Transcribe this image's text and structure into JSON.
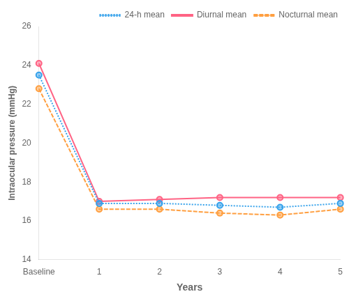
{
  "chart_data": {
    "type": "line",
    "xlabel": "Years",
    "ylabel": "Intraocular pressure (mmHg)",
    "categories": [
      "Baseline",
      "1",
      "2",
      "3",
      "4",
      "5"
    ],
    "series": [
      {
        "name": "24-h mean",
        "values": [
          23.5,
          16.9,
          16.9,
          16.8,
          16.7,
          16.9
        ],
        "marker": "circle",
        "line_style": "dotted"
      },
      {
        "name": "Diurnal mean",
        "values": [
          24.1,
          17.0,
          17.1,
          17.2,
          17.2,
          17.2
        ],
        "marker": "circle",
        "line_style": "solid"
      },
      {
        "name": "Nocturnal mean",
        "values": [
          22.8,
          16.6,
          16.6,
          16.4,
          16.3,
          16.6
        ],
        "marker": "circle",
        "line_style": "dashed"
      }
    ],
    "ylim": [
      14,
      26
    ],
    "yticks": [
      14,
      16,
      18,
      20,
      22,
      24,
      26
    ],
    "grid": false,
    "legend": "upper right"
  }
}
